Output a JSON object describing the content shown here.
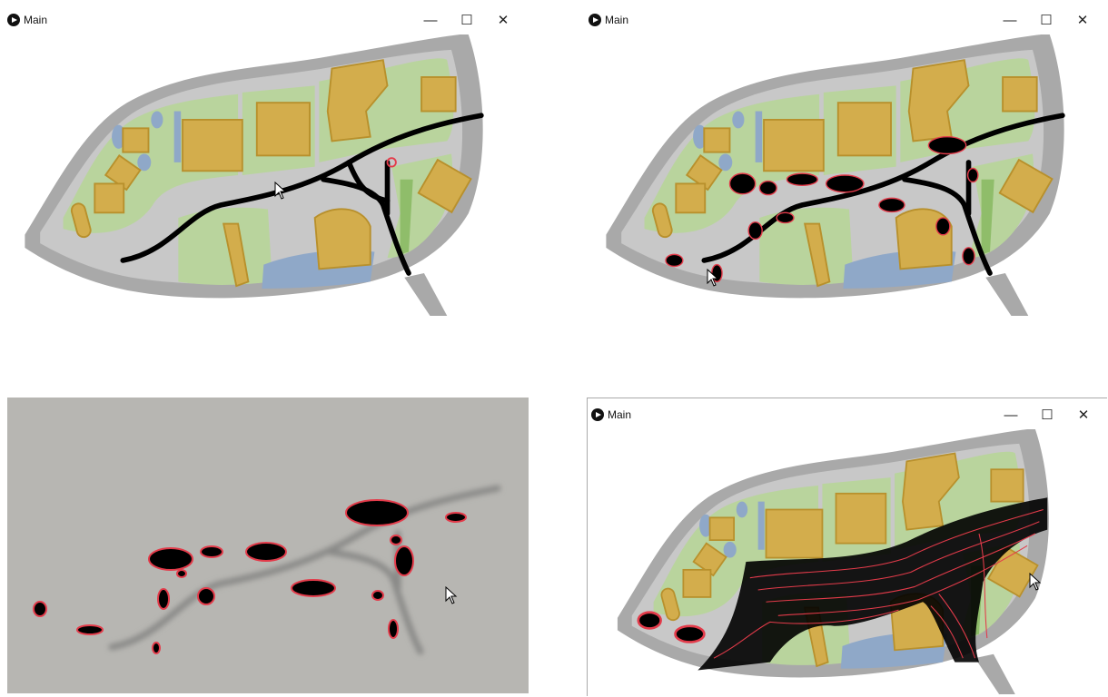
{
  "windows": [
    {
      "title": "Main",
      "controls": {
        "minimize": "—",
        "maximize": "☐",
        "close": "✕"
      }
    },
    {
      "title": "Main",
      "controls": {
        "minimize": "—",
        "maximize": "☐",
        "close": "✕"
      }
    },
    {
      "title": "Main",
      "controls": {
        "minimize": "—",
        "maximize": "☐",
        "close": "✕"
      }
    }
  ],
  "colors": {
    "road": "#a9a9a9",
    "plaza": "#c8c8c8",
    "lawn": "#b9d49d",
    "dark_lawn": "#8fbd6a",
    "building": "#d3ad4c",
    "building_edge": "#b8902c",
    "water": "#8fa8c8",
    "path": "#000000",
    "edge_highlight": "#e33b4a",
    "heatmap_bg": "#b7b6b2"
  }
}
